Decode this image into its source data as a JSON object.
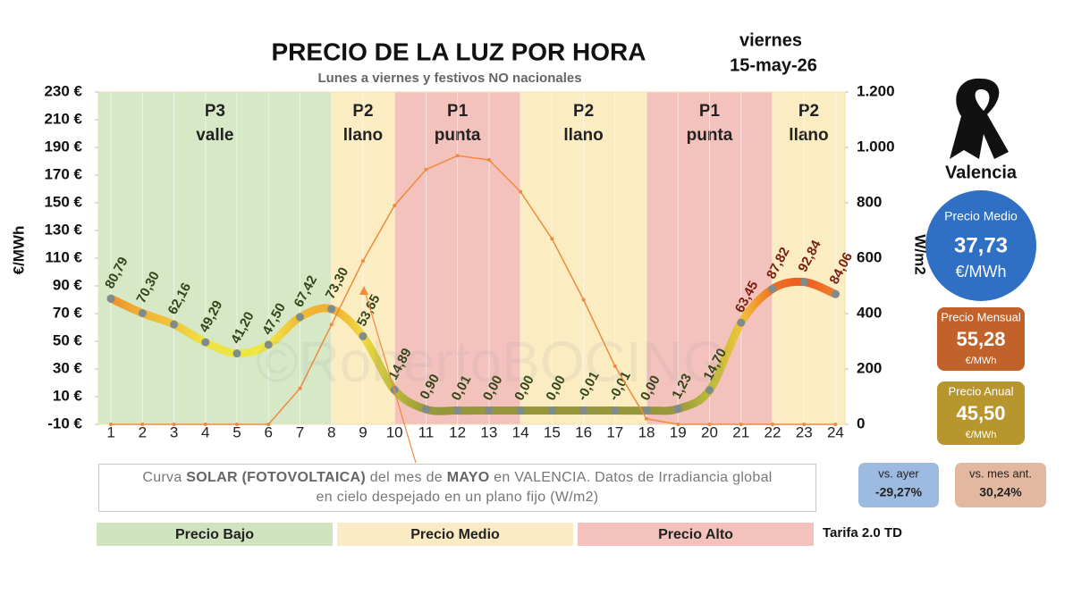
{
  "chart_data": {
    "type": "line",
    "title": "PRECIO DE LA LUZ POR HORA",
    "subtitle": "Lunes a viernes y festivos NO nacionales",
    "date": [
      "viernes",
      "15-may-26"
    ],
    "ylabel": "€/MWh",
    "y2label": "W/m2",
    "watermark": "©RobertoBOCING",
    "x": [
      1,
      2,
      3,
      4,
      5,
      6,
      7,
      8,
      9,
      10,
      11,
      12,
      13,
      14,
      15,
      16,
      17,
      18,
      19,
      20,
      21,
      22,
      23,
      24
    ],
    "xlim": [
      0.6,
      24.3
    ],
    "xticks": [
      1,
      2,
      3,
      4,
      5,
      6,
      7,
      8,
      9,
      10,
      11,
      12,
      13,
      14,
      15,
      16,
      17,
      18,
      19,
      20,
      21,
      22,
      23,
      24
    ],
    "xgrid": true,
    "ylim": [
      -10,
      230
    ],
    "yticks": [
      {
        "value": -10,
        "label": "-10 €"
      },
      {
        "value": 10,
        "label": "10 €"
      },
      {
        "value": 30,
        "label": "30 €"
      },
      {
        "value": 50,
        "label": "50 €"
      },
      {
        "value": 70,
        "label": "70 €"
      },
      {
        "value": 90,
        "label": "90 €"
      },
      {
        "value": 110,
        "label": "110 €"
      },
      {
        "value": 130,
        "label": "130 €"
      },
      {
        "value": 150,
        "label": "150 €"
      },
      {
        "value": 170,
        "label": "170 €"
      },
      {
        "value": 190,
        "label": "190 €"
      },
      {
        "value": 210,
        "label": "210 €"
      },
      {
        "value": 230,
        "label": "230 €"
      }
    ],
    "y2lim": [
      0,
      1200
    ],
    "y2ticks": [
      0,
      200,
      400,
      600,
      800,
      {
        "value": 1000,
        "label": "1.000"
      },
      {
        "value": 1200,
        "label": "1.200"
      }
    ],
    "series": [
      {
        "values": [
          80.79,
          70.3,
          62.16,
          49.29,
          41.2,
          47.5,
          67.42,
          73.3,
          53.65,
          14.89,
          0.9,
          0.01,
          0.0,
          0.0,
          0.0,
          -0.01,
          -0.01,
          0.0,
          1.23,
          14.7,
          63.45,
          87.82,
          92.84,
          84.06
        ],
        "value_labels": [
          "80,79",
          "70,30",
          "62,16",
          "49,29",
          "41,20",
          "47,50",
          "67,42",
          "73,30",
          "53,65",
          "14,89",
          "0,90",
          "0,01",
          "0,00",
          "0,00",
          "0,00",
          "-0,01",
          "-0,01",
          "0,00",
          "1,23",
          "14,70",
          "63,45",
          "87,82",
          "92,84",
          "84,06"
        ],
        "color": "#7f8c8d"
      },
      {
        "axis": "y2",
        "color": "#f08a3c",
        "values": [
          0,
          0,
          0,
          0,
          0,
          0,
          130,
          360,
          590,
          790,
          920,
          970,
          955,
          840,
          670,
          450,
          210,
          20,
          0,
          0,
          0,
          0,
          0,
          0
        ]
      }
    ],
    "periods": [
      {
        "name": "P3",
        "label": "valle",
        "start": 0.6,
        "end": 8,
        "color": "#d6e8c6"
      },
      {
        "name": "P2",
        "label": "llano",
        "start": 8,
        "end": 10,
        "color": "#fbecc2"
      },
      {
        "name": "P1",
        "label": "punta",
        "start": 10,
        "end": 14,
        "color": "#f4c2bd"
      },
      {
        "name": "P2",
        "label": "llano",
        "start": 14,
        "end": 18,
        "color": "#fbecc2"
      },
      {
        "name": "P1",
        "label": "punta",
        "start": 18,
        "end": 22,
        "color": "#f4c2bd"
      },
      {
        "name": "P2",
        "label": "llano",
        "start": 22,
        "end": 24.3,
        "color": "#fbecc2"
      }
    ]
  },
  "note": [
    "Curva ",
    "SOLAR (FOTOVOLTAICA)",
    " del mes de ",
    "MAYO",
    " en VALENCIA. Datos de Irradiancia global en cielo despejado en un plano fijo (W/m2)"
  ],
  "legend_bands": [
    {
      "label": "Precio Bajo",
      "color": "#cfe3bf"
    },
    {
      "label": "Precio Medio",
      "color": "#fbebc4"
    },
    {
      "label": "Precio Alto",
      "color": "#f4c2bd"
    }
  ],
  "tariff": "Tarifa 2.0 TD",
  "side_panel": {
    "city": "Valencia",
    "medio": {
      "title": "Precio Medio",
      "value": "37,73",
      "unit": "€/MWh"
    },
    "mensual": {
      "title": "Precio Mensual",
      "value": "55,28",
      "unit": "€/MWh"
    },
    "anual": {
      "title": "Precio Anual",
      "value": "45,50",
      "unit": "€/MWh"
    },
    "vs_ayer": {
      "title": "vs. ayer",
      "value": "-29,27%"
    },
    "vs_mes": {
      "title": "vs. mes ant.",
      "value": "30,24%"
    }
  }
}
